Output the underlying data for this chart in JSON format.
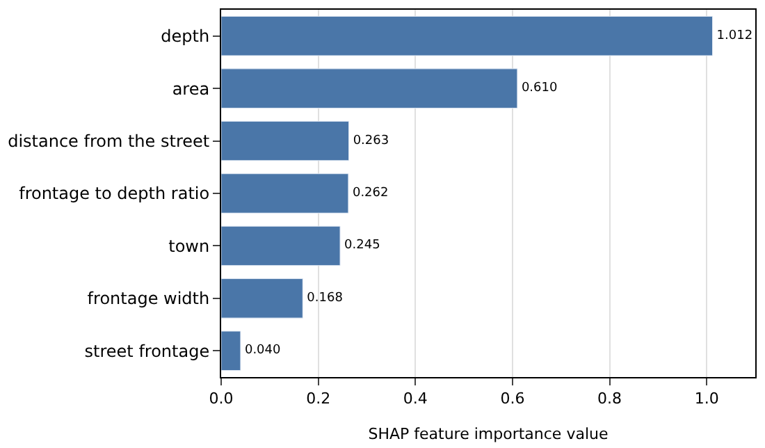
{
  "chart_data": {
    "type": "bar",
    "orientation": "horizontal",
    "xlabel": "SHAP feature importance value",
    "categories": [
      "depth",
      "area",
      "distance from the street",
      "frontage to depth ratio",
      "town",
      "frontage width",
      "street frontage"
    ],
    "values": [
      1.012,
      0.61,
      0.263,
      0.262,
      0.245,
      0.168,
      0.04
    ],
    "value_labels": [
      "1.012",
      "0.610",
      "0.263",
      "0.262",
      "0.245",
      "0.168",
      "0.040"
    ],
    "color": "#4a76a8",
    "xlim": [
      0,
      1.1
    ],
    "xticks": [
      {
        "value": 0,
        "label": "0.0"
      },
      {
        "value": 0.2,
        "label": "0.2"
      },
      {
        "value": 0.4,
        "label": "0.4"
      },
      {
        "value": 0.6,
        "label": "0.6"
      },
      {
        "value": 0.8,
        "label": "0.8"
      },
      {
        "value": 1.0,
        "label": "1.0"
      }
    ],
    "grid": "x"
  }
}
